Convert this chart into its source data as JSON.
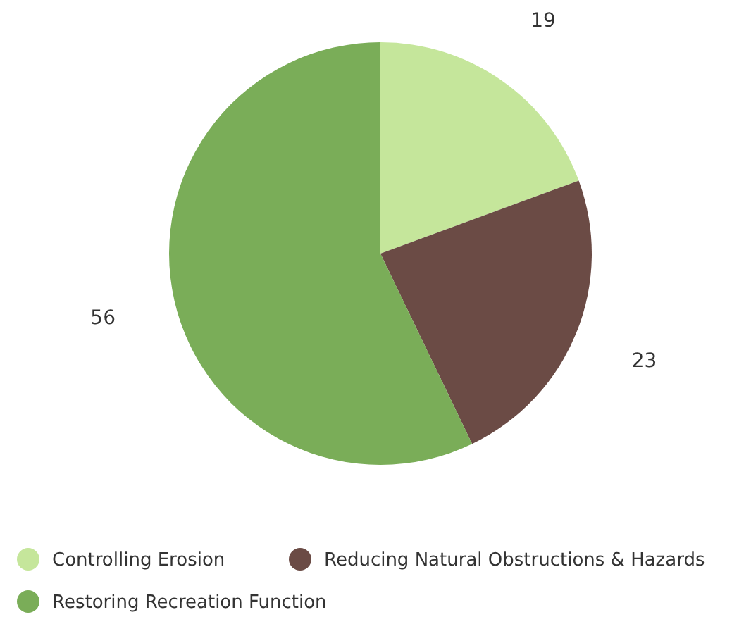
{
  "chart_data": {
    "type": "pie",
    "categories": [
      "Controlling Erosion",
      "Reducing Natural Obstructions & Hazards",
      "Restoring Recreation Function"
    ],
    "values": [
      19,
      23,
      56
    ],
    "colors": [
      "#c5e69b",
      "#6b4b45",
      "#7aad58"
    ],
    "data_labels": true,
    "legend": "bottom"
  }
}
